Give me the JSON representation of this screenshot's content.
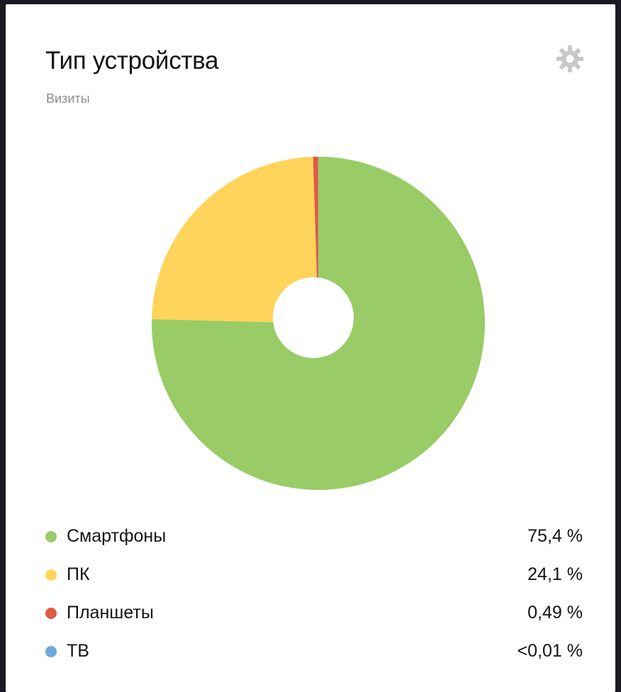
{
  "card": {
    "title": "Тип устройства",
    "subtitle": "Визиты",
    "settings_icon": "gear-icon"
  },
  "chart_data": {
    "type": "pie",
    "donut": true,
    "legend_position": "bottom",
    "slices": [
      {
        "label": "Смартфоны",
        "value": 75.4,
        "display": "75,4 %",
        "color": "#99cc66"
      },
      {
        "label": "ПК",
        "value": 24.1,
        "display": "24,1 %",
        "color": "#ffd45a"
      },
      {
        "label": "Планшеты",
        "value": 0.49,
        "display": "0,49 %",
        "color": "#e05a44"
      },
      {
        "label": "ТВ",
        "value": 0.01,
        "display": "<0,01 %",
        "color": "#6fa8dc"
      }
    ]
  },
  "colors": {
    "background": "#1b1a22",
    "card": "#ffffff",
    "text": "#141414",
    "muted": "#8c8c8c",
    "gear": "#c8c8c8"
  }
}
